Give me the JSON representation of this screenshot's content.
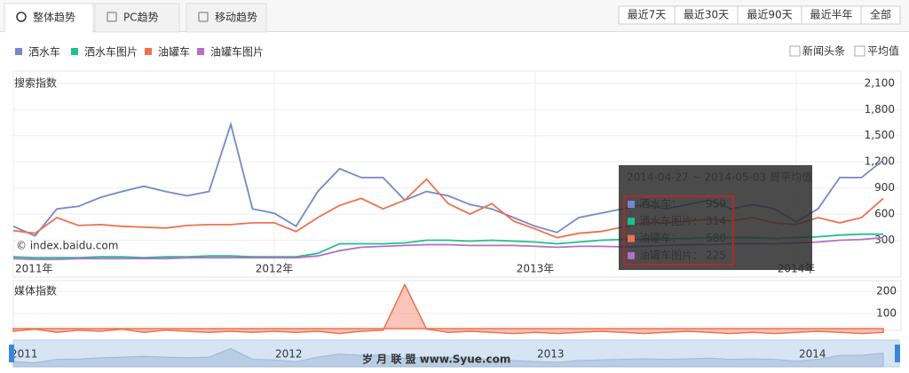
{
  "tabs": [
    "整体趋势",
    "PC趋势",
    "移动趋势"
  ],
  "range_buttons": [
    "最近7天",
    "最近30天",
    "最近90天",
    "最近半年",
    "全部"
  ],
  "checkboxes": [
    "新闻头条",
    "平均值"
  ],
  "watermark": "岁 月 联 盟  www.Syue.com",
  "chart_data": [
    {
      "type": "line",
      "ylabel": "搜索指数",
      "credit": "© index.baidu.com",
      "categories": [
        "2011年",
        null,
        null,
        null,
        null,
        null,
        null,
        null,
        null,
        null,
        null,
        null,
        "2012年",
        null,
        null,
        null,
        null,
        null,
        null,
        null,
        null,
        null,
        null,
        null,
        "2013年",
        null,
        null,
        null,
        null,
        null,
        null,
        null,
        null,
        null,
        null,
        null,
        "2014年",
        null,
        null,
        null,
        null
      ],
      "series": [
        {
          "name": "洒水车",
          "color": "#7688c9",
          "values": [
            460,
            350,
            660,
            690,
            790,
            860,
            920,
            860,
            810,
            860,
            1630,
            660,
            610,
            460,
            860,
            1120,
            1020,
            1020,
            760,
            860,
            810,
            710,
            660,
            560,
            460,
            390,
            560,
            610,
            660,
            710,
            660,
            710,
            760,
            660,
            710,
            660,
            510,
            660,
            1020,
            1020,
            1220
          ]
        },
        {
          "name": "洒水车图片",
          "color": "#20c08c",
          "values": [
            110,
            100,
            100,
            100,
            110,
            110,
            100,
            110,
            110,
            120,
            120,
            110,
            110,
            110,
            150,
            260,
            260,
            260,
            270,
            300,
            300,
            290,
            300,
            290,
            280,
            260,
            280,
            300,
            310,
            310,
            320,
            320,
            330,
            330,
            330,
            320,
            330,
            340,
            360,
            370,
            370
          ]
        },
        {
          "name": "油罐车",
          "color": "#f0714f",
          "values": [
            410,
            380,
            560,
            470,
            480,
            460,
            450,
            440,
            470,
            480,
            480,
            500,
            500,
            400,
            560,
            700,
            780,
            660,
            760,
            1000,
            720,
            600,
            720,
            520,
            430,
            330,
            380,
            400,
            450,
            500,
            500,
            520,
            540,
            520,
            560,
            500,
            480,
            560,
            500,
            560,
            780
          ]
        },
        {
          "name": "油罐车图片",
          "color": "#b36fc9",
          "values": [
            90,
            80,
            80,
            90,
            90,
            90,
            90,
            90,
            100,
            100,
            100,
            100,
            100,
            100,
            120,
            180,
            220,
            230,
            240,
            250,
            250,
            240,
            240,
            240,
            230,
            220,
            230,
            230,
            225,
            230,
            240,
            250,
            250,
            260,
            260,
            260,
            270,
            280,
            300,
            310,
            330
          ]
        }
      ],
      "ylim": [
        0,
        2200
      ],
      "yticks": [
        300,
        600,
        900,
        {
          "value": 1200,
          "label": "1,200"
        },
        {
          "value": 1500,
          "label": "1,500"
        },
        {
          "value": 1800,
          "label": "1,800"
        },
        {
          "value": 2100,
          "label": "2,100"
        }
      ],
      "grid": true,
      "tooltip": {
        "title": "2014-04-27 ~ 2014-05-03 周平均值",
        "items": [
          {
            "label": "洒水车：",
            "value": 959,
            "color": "#7688c9"
          },
          {
            "label": "洒水车图片：",
            "value": 314,
            "color": "#20c08c"
          },
          {
            "label": "油罐车：",
            "value": 580,
            "color": "#f0714f"
          },
          {
            "label": "油罐车图片：",
            "value": 225,
            "color": "#b36fc9"
          }
        ]
      }
    },
    {
      "type": "area",
      "ylabel": "媒体指数",
      "series": [
        {
          "color": "#f0714f",
          "values": [
            20,
            30,
            15,
            25,
            20,
            30,
            15,
            25,
            20,
            15,
            20,
            15,
            20,
            15,
            20,
            10,
            20,
            25,
            230,
            30,
            15,
            20,
            15,
            10,
            15,
            10,
            15,
            20,
            15,
            10,
            15,
            20,
            15,
            10,
            15,
            10,
            15,
            20,
            15,
            10,
            15
          ]
        }
      ],
      "ylim": [
        0,
        240
      ],
      "yticks": [
        100,
        200
      ],
      "grid": true
    },
    {
      "type": "navigator",
      "labels": [
        "2011",
        "2012",
        "2013",
        "2014"
      ]
    }
  ]
}
